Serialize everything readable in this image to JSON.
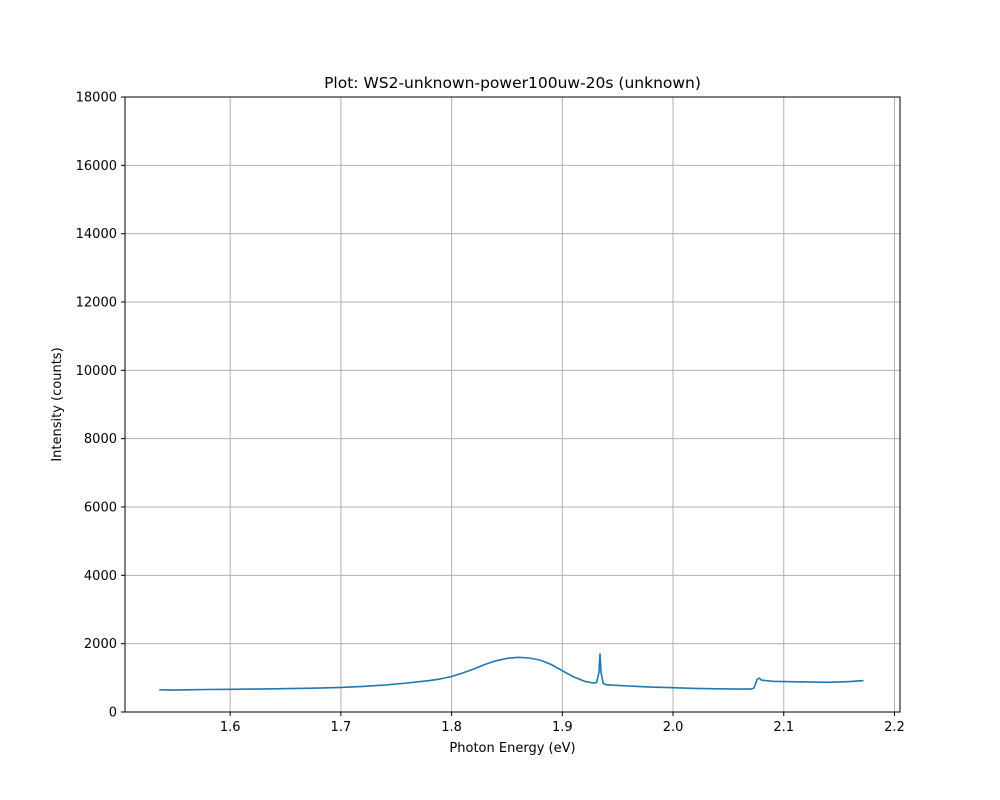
{
  "chart_data": {
    "type": "line",
    "title": "Plot: WS2-unknown-power100uw-20s (unknown)",
    "xlabel": "Photon Energy (eV)",
    "ylabel": "Intensity (counts)",
    "xlim": [
      1.505,
      2.205
    ],
    "ylim": [
      0,
      18000
    ],
    "xticks": [
      1.6,
      1.7,
      1.8,
      1.9,
      2.0,
      2.1,
      2.2
    ],
    "xtick_labels": [
      "1.6",
      "1.7",
      "1.8",
      "1.9",
      "2.0",
      "2.1",
      "2.2"
    ],
    "yticks": [
      0,
      2000,
      4000,
      6000,
      8000,
      10000,
      12000,
      14000,
      16000,
      18000
    ],
    "ytick_labels": [
      "0",
      "2000",
      "4000",
      "6000",
      "8000",
      "10000",
      "12000",
      "14000",
      "16000",
      "18000"
    ],
    "grid": true,
    "series": [
      {
        "color": "#1f77b4",
        "x": [
          1.536,
          1.55,
          1.56,
          1.58,
          1.6,
          1.62,
          1.64,
          1.66,
          1.68,
          1.7,
          1.72,
          1.74,
          1.76,
          1.78,
          1.79,
          1.8,
          1.81,
          1.82,
          1.83,
          1.84,
          1.85,
          1.86,
          1.87,
          1.88,
          1.89,
          1.9,
          1.91,
          1.92,
          1.928,
          1.931,
          1.933,
          1.934,
          1.935,
          1.937,
          1.94,
          1.95,
          1.96,
          1.98,
          2.0,
          2.02,
          2.04,
          2.06,
          2.07,
          2.073,
          2.076,
          2.078,
          2.08,
          2.09,
          2.1,
          2.12,
          2.14,
          2.16,
          2.172
        ],
        "y": [
          650,
          640,
          650,
          660,
          665,
          670,
          680,
          690,
          700,
          720,
          750,
          790,
          850,
          920,
          970,
          1040,
          1140,
          1260,
          1390,
          1500,
          1570,
          1600,
          1580,
          1520,
          1390,
          1210,
          1030,
          900,
          850,
          860,
          1150,
          1700,
          1150,
          830,
          800,
          780,
          760,
          730,
          710,
          690,
          680,
          670,
          670,
          700,
          960,
          990,
          930,
          900,
          890,
          880,
          870,
          890,
          920
        ]
      }
    ]
  }
}
